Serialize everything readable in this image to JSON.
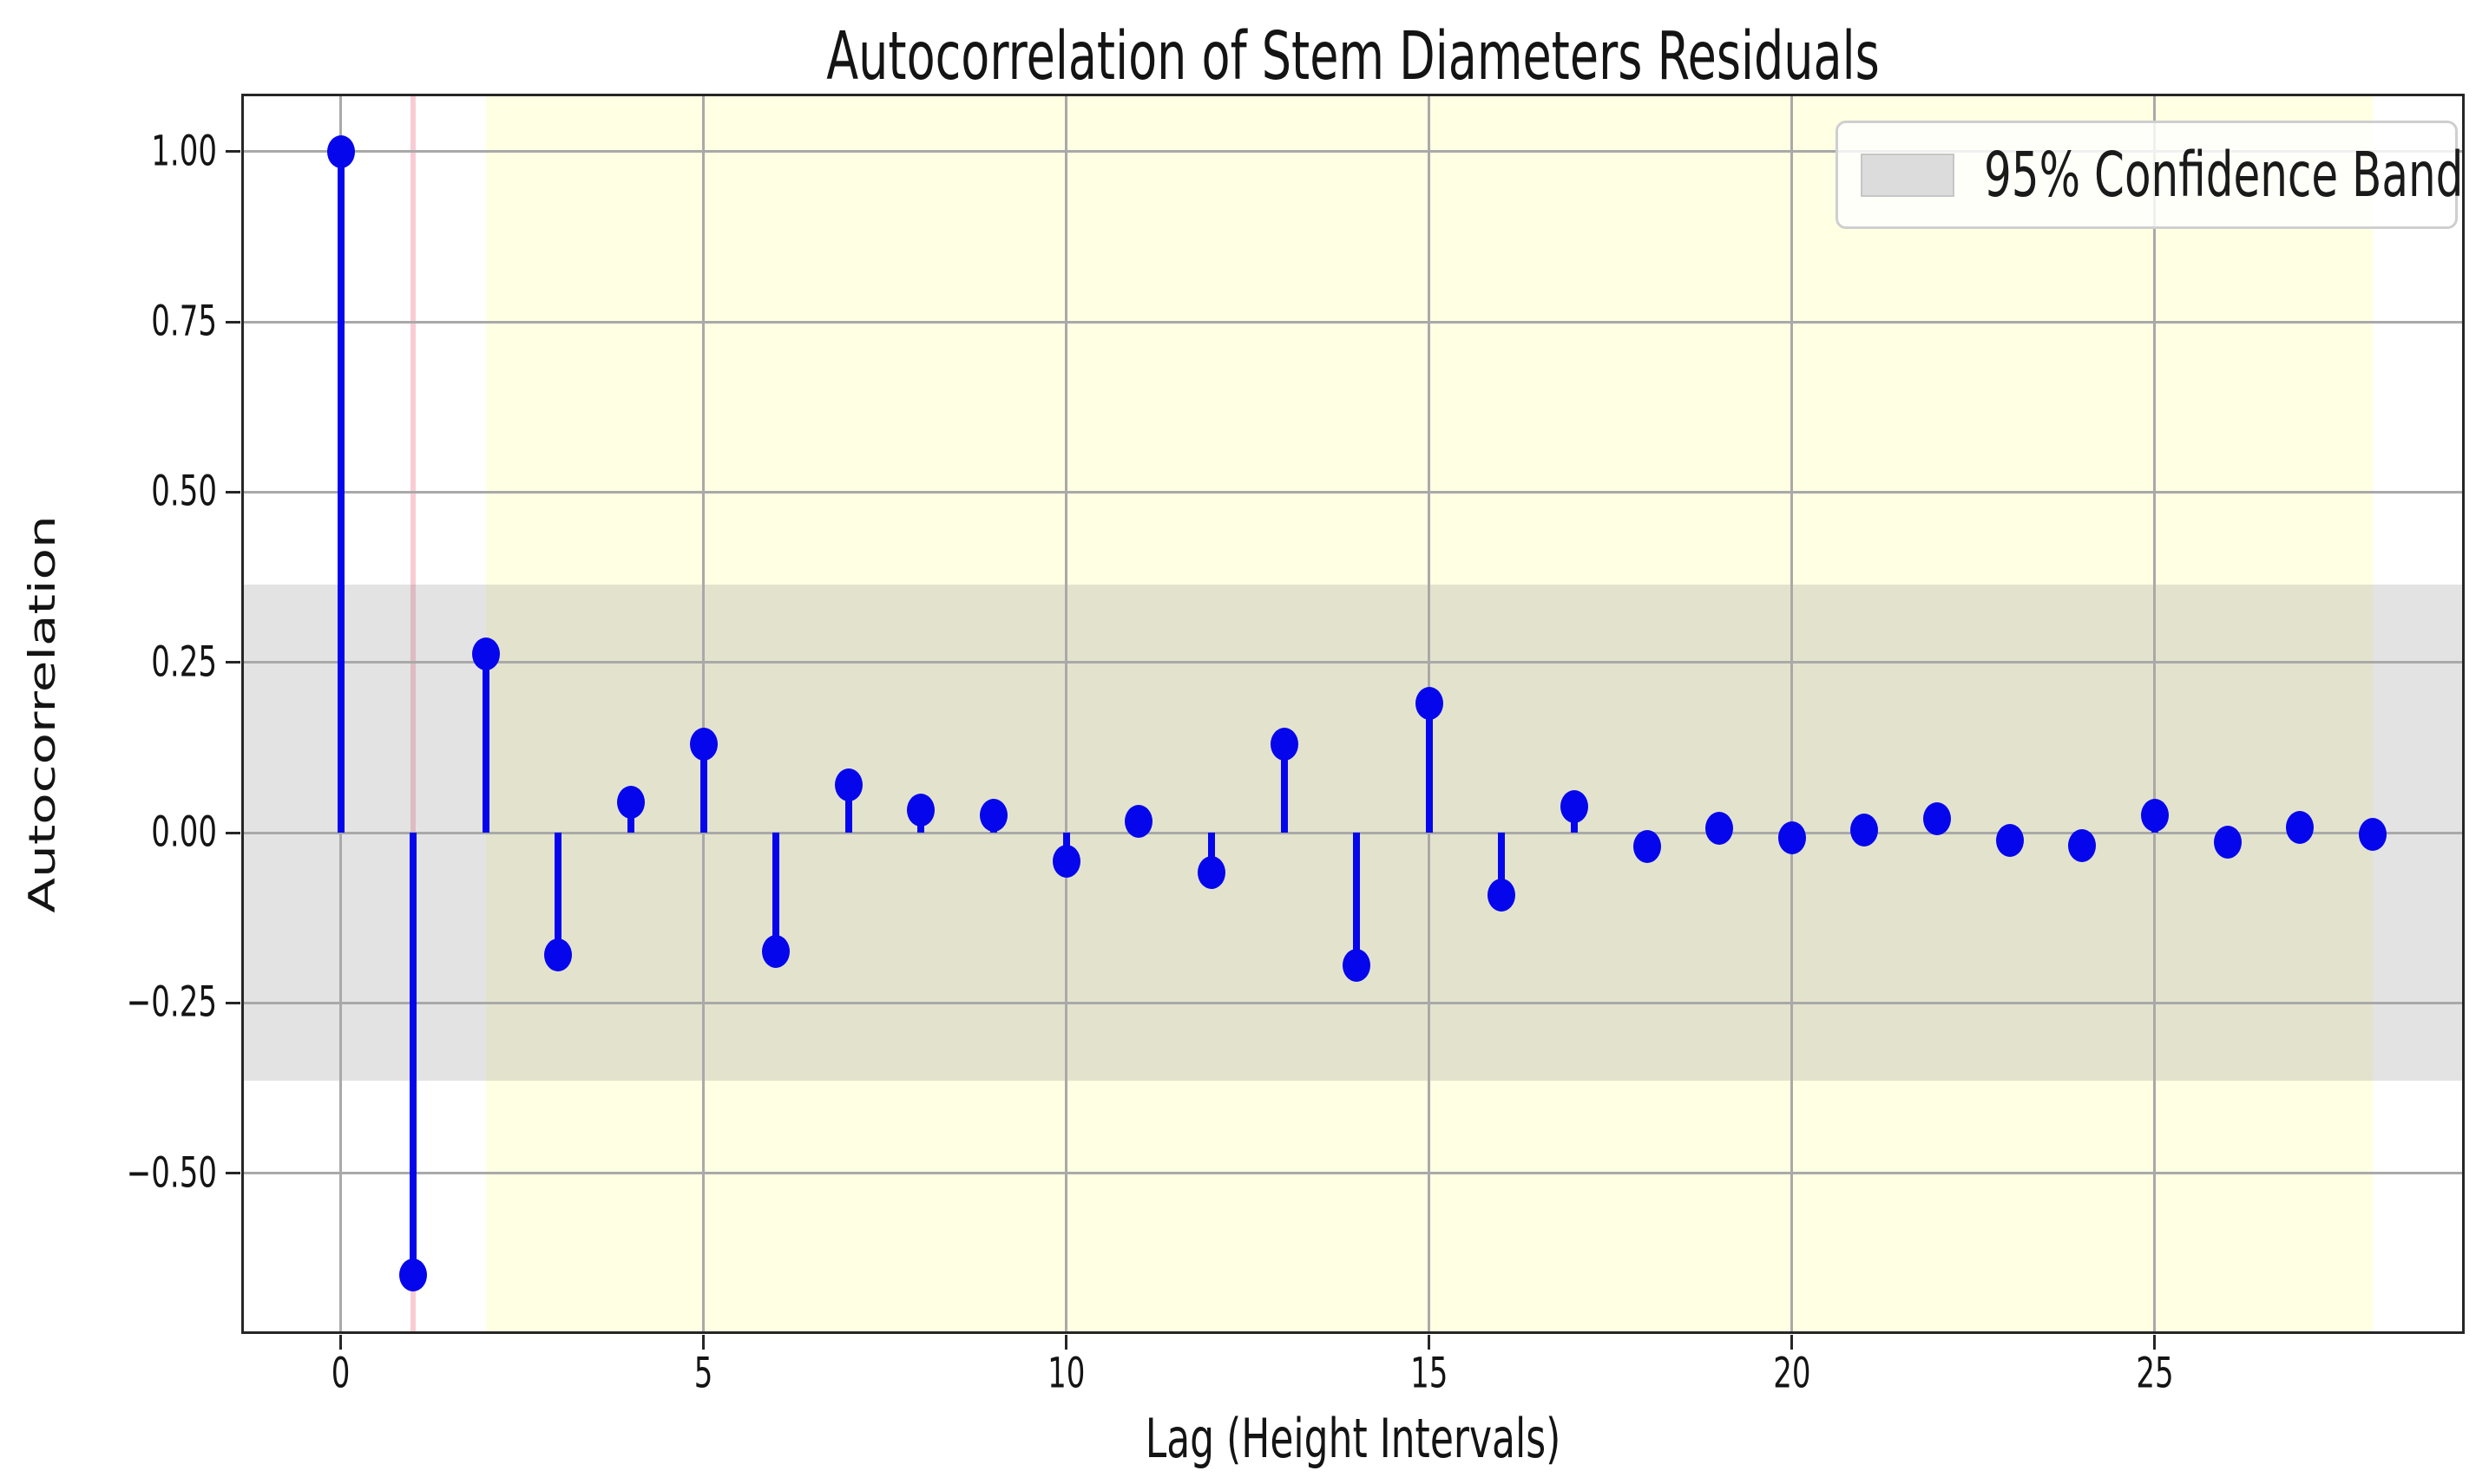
{
  "chart_data": {
    "type": "stem",
    "title": "Autocorrelation of Stem Diameters Residuals",
    "xlabel": "Lag (Height Intervals)",
    "ylabel": "Autocorrelation",
    "lags": [
      0,
      1,
      2,
      3,
      4,
      5,
      6,
      7,
      8,
      9,
      10,
      11,
      12,
      13,
      14,
      15,
      16,
      17,
      18,
      19,
      20,
      21,
      22,
      23,
      24,
      25,
      26,
      27,
      28
    ],
    "acf": [
      1.0,
      -0.65,
      0.262,
      -0.18,
      0.045,
      0.13,
      -0.175,
      0.07,
      0.033,
      0.026,
      -0.042,
      0.016,
      -0.058,
      0.13,
      -0.195,
      0.19,
      -0.092,
      0.038,
      -0.02,
      0.006,
      -0.008,
      0.004,
      0.02,
      -0.012,
      -0.019,
      0.026,
      -0.014,
      0.008,
      -0.003
    ],
    "confidence_band": {
      "label": "95% Confidence Band",
      "low": -0.364,
      "high": 0.364
    },
    "highlight_span": {
      "x0": 2,
      "x1": 28
    },
    "vline_x": 1,
    "x_ticks": {
      "values": [
        0,
        5,
        10,
        15,
        20,
        25
      ],
      "labels": [
        "0",
        "5",
        "10",
        "15",
        "20",
        "25"
      ]
    },
    "y_ticks": {
      "values": [
        1.0,
        0.75,
        0.5,
        0.25,
        0.0,
        -0.25,
        -0.5
      ],
      "labels": [
        "1.00",
        "0.75",
        "0.50",
        "0.25",
        "0.00",
        "−0.25",
        "−0.50"
      ]
    },
    "xlim": [
      -1.37,
      29.27
    ],
    "ylim": [
      -0.736,
      1.085
    ],
    "grid": true,
    "legend_position": "upper right",
    "colors": {
      "stem": "#0606ec",
      "marker": "#0606ec",
      "band": "rgba(128,128,128,0.22)",
      "highlight": "rgba(255,255,210,0.62)",
      "vline": "rgba(240,128,150,0.40)",
      "grid": "#a9a9a9",
      "frame": "#262626"
    }
  }
}
